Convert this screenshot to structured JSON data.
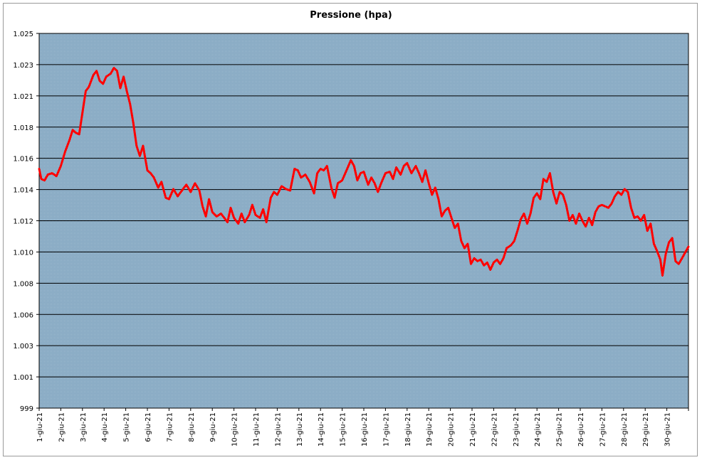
{
  "chart_data": {
    "type": "line",
    "title": "Pressione (hpa)",
    "xlabel": "",
    "ylabel": "",
    "y_tick_labels": [
      "999",
      "1.001",
      "1.003",
      "1.006",
      "1.008",
      "1.010",
      "1.012",
      "1.014",
      "1.016",
      "1.018",
      "1.021",
      "1.023",
      "1.025"
    ],
    "ylim": [
      999,
      1025
    ],
    "x_tick_labels": [
      "1-giu-21",
      "2-giu-21",
      "3-giu-21",
      "4-giu-21",
      "5-giu-21",
      "6-giu-21",
      "7-giu-21",
      "8-giu-21",
      "9-giu-21",
      "10-giu-21",
      "11-giu-21",
      "12-giu-21",
      "13-giu-21",
      "14-giu-21",
      "15-giu-21",
      "16-giu-21",
      "17-giu-21",
      "18-giu-21",
      "19-giu-21",
      "20-giu-21",
      "21-giu-21",
      "22-giu-21",
      "23-giu-21",
      "24-giu-21",
      "25-giu-21",
      "26-giu-21",
      "27-giu-21",
      "28-giu-21",
      "29-giu-21",
      "30-giu-21"
    ],
    "xlim": [
      1,
      31
    ],
    "grid": true,
    "plot_background": "#7fa6bf",
    "series": [
      {
        "color": "#ff0000",
        "points": [
          [
            1.0,
            1015.6
          ],
          [
            1.1,
            1014.9
          ],
          [
            1.25,
            1014.8
          ],
          [
            1.4,
            1015.2
          ],
          [
            1.6,
            1015.3
          ],
          [
            1.8,
            1015.1
          ],
          [
            2.0,
            1015.8
          ],
          [
            2.2,
            1016.8
          ],
          [
            2.4,
            1017.6
          ],
          [
            2.55,
            1018.3
          ],
          [
            2.7,
            1018.1
          ],
          [
            2.85,
            1018.0
          ],
          [
            3.0,
            1019.5
          ],
          [
            3.15,
            1021.0
          ],
          [
            3.3,
            1021.3
          ],
          [
            3.5,
            1022.1
          ],
          [
            3.65,
            1022.4
          ],
          [
            3.8,
            1021.7
          ],
          [
            3.95,
            1021.5
          ],
          [
            4.1,
            1022.0
          ],
          [
            4.3,
            1022.2
          ],
          [
            4.45,
            1022.6
          ],
          [
            4.6,
            1022.4
          ],
          [
            4.75,
            1021.2
          ],
          [
            4.9,
            1022.0
          ],
          [
            5.05,
            1021.0
          ],
          [
            5.2,
            1020.1
          ],
          [
            5.35,
            1018.8
          ],
          [
            5.5,
            1017.2
          ],
          [
            5.65,
            1016.5
          ],
          [
            5.8,
            1017.2
          ],
          [
            6.0,
            1015.5
          ],
          [
            6.15,
            1015.3
          ],
          [
            6.3,
            1015.0
          ],
          [
            6.5,
            1014.3
          ],
          [
            6.65,
            1014.7
          ],
          [
            6.85,
            1013.6
          ],
          [
            7.0,
            1013.5
          ],
          [
            7.2,
            1014.2
          ],
          [
            7.4,
            1013.7
          ],
          [
            7.6,
            1014.1
          ],
          [
            7.8,
            1014.5
          ],
          [
            8.0,
            1014.0
          ],
          [
            8.2,
            1014.6
          ],
          [
            8.4,
            1014.1
          ],
          [
            8.55,
            1013.0
          ],
          [
            8.7,
            1012.3
          ],
          [
            8.85,
            1013.5
          ],
          [
            9.0,
            1012.6
          ],
          [
            9.2,
            1012.3
          ],
          [
            9.4,
            1012.5
          ],
          [
            9.55,
            1012.2
          ],
          [
            9.7,
            1011.9
          ],
          [
            9.85,
            1012.9
          ],
          [
            10.0,
            1012.2
          ],
          [
            10.2,
            1011.8
          ],
          [
            10.35,
            1012.5
          ],
          [
            10.5,
            1011.9
          ],
          [
            10.7,
            1012.4
          ],
          [
            10.85,
            1013.1
          ],
          [
            11.0,
            1012.4
          ],
          [
            11.2,
            1012.2
          ],
          [
            11.35,
            1012.8
          ],
          [
            11.5,
            1011.9
          ],
          [
            11.7,
            1013.6
          ],
          [
            11.85,
            1014.0
          ],
          [
            12.0,
            1013.8
          ],
          [
            12.2,
            1014.4
          ],
          [
            12.4,
            1014.2
          ],
          [
            12.6,
            1014.1
          ],
          [
            12.8,
            1015.6
          ],
          [
            12.95,
            1015.5
          ],
          [
            13.1,
            1015.0
          ],
          [
            13.3,
            1015.2
          ],
          [
            13.5,
            1014.7
          ],
          [
            13.7,
            1013.9
          ],
          [
            13.85,
            1015.3
          ],
          [
            14.0,
            1015.6
          ],
          [
            14.15,
            1015.5
          ],
          [
            14.3,
            1015.8
          ],
          [
            14.5,
            1014.3
          ],
          [
            14.65,
            1013.6
          ],
          [
            14.8,
            1014.6
          ],
          [
            15.0,
            1014.8
          ],
          [
            15.2,
            1015.5
          ],
          [
            15.4,
            1016.2
          ],
          [
            15.55,
            1015.8
          ],
          [
            15.7,
            1014.8
          ],
          [
            15.85,
            1015.3
          ],
          [
            16.0,
            1015.4
          ],
          [
            16.2,
            1014.5
          ],
          [
            16.35,
            1015.0
          ],
          [
            16.5,
            1014.6
          ],
          [
            16.65,
            1014.0
          ],
          [
            16.8,
            1014.6
          ],
          [
            17.0,
            1015.3
          ],
          [
            17.2,
            1015.4
          ],
          [
            17.35,
            1014.9
          ],
          [
            17.5,
            1015.7
          ],
          [
            17.7,
            1015.2
          ],
          [
            17.85,
            1015.8
          ],
          [
            18.0,
            1016.0
          ],
          [
            18.2,
            1015.3
          ],
          [
            18.4,
            1015.8
          ],
          [
            18.55,
            1015.3
          ],
          [
            18.7,
            1014.7
          ],
          [
            18.85,
            1015.5
          ],
          [
            19.0,
            1014.6
          ],
          [
            19.15,
            1013.8
          ],
          [
            19.3,
            1014.3
          ],
          [
            19.45,
            1013.5
          ],
          [
            19.6,
            1012.3
          ],
          [
            19.75,
            1012.7
          ],
          [
            19.9,
            1012.9
          ],
          [
            20.05,
            1012.2
          ],
          [
            20.2,
            1011.5
          ],
          [
            20.35,
            1011.8
          ],
          [
            20.5,
            1010.6
          ],
          [
            20.65,
            1010.1
          ],
          [
            20.8,
            1010.4
          ],
          [
            20.95,
            1009.0
          ],
          [
            21.1,
            1009.4
          ],
          [
            21.25,
            1009.2
          ],
          [
            21.4,
            1009.3
          ],
          [
            21.55,
            1008.9
          ],
          [
            21.7,
            1009.1
          ],
          [
            21.85,
            1008.6
          ],
          [
            22.0,
            1009.1
          ],
          [
            22.15,
            1009.3
          ],
          [
            22.3,
            1009.0
          ],
          [
            22.45,
            1009.4
          ],
          [
            22.6,
            1010.1
          ],
          [
            22.8,
            1010.3
          ],
          [
            22.95,
            1010.6
          ],
          [
            23.1,
            1011.3
          ],
          [
            23.25,
            1012.1
          ],
          [
            23.4,
            1012.5
          ],
          [
            23.55,
            1011.8
          ],
          [
            23.7,
            1012.5
          ],
          [
            23.85,
            1013.6
          ],
          [
            24.0,
            1013.9
          ],
          [
            24.15,
            1013.5
          ],
          [
            24.3,
            1014.9
          ],
          [
            24.45,
            1014.7
          ],
          [
            24.6,
            1015.3
          ],
          [
            24.75,
            1014.0
          ],
          [
            24.9,
            1013.2
          ],
          [
            25.05,
            1014.0
          ],
          [
            25.2,
            1013.8
          ],
          [
            25.35,
            1013.1
          ],
          [
            25.5,
            1012.0
          ],
          [
            25.65,
            1012.4
          ],
          [
            25.8,
            1011.8
          ],
          [
            25.95,
            1012.5
          ],
          [
            26.1,
            1012.0
          ],
          [
            26.25,
            1011.6
          ],
          [
            26.4,
            1012.2
          ],
          [
            26.55,
            1011.7
          ],
          [
            26.7,
            1012.6
          ],
          [
            26.85,
            1013.0
          ],
          [
            27.0,
            1013.1
          ],
          [
            27.15,
            1013.0
          ],
          [
            27.3,
            1012.9
          ],
          [
            27.45,
            1013.2
          ],
          [
            27.6,
            1013.7
          ],
          [
            27.75,
            1014.0
          ],
          [
            27.9,
            1013.8
          ],
          [
            28.05,
            1014.2
          ],
          [
            28.2,
            1014.0
          ],
          [
            28.35,
            1012.9
          ],
          [
            28.5,
            1012.2
          ],
          [
            28.65,
            1012.3
          ],
          [
            28.8,
            1012.0
          ],
          [
            28.95,
            1012.4
          ],
          [
            29.1,
            1011.3
          ],
          [
            29.25,
            1011.8
          ],
          [
            29.4,
            1010.4
          ],
          [
            29.55,
            1009.9
          ],
          [
            29.7,
            1009.3
          ],
          [
            29.8,
            1008.2
          ],
          [
            29.95,
            1009.7
          ],
          [
            30.1,
            1010.5
          ],
          [
            30.25,
            1010.8
          ],
          [
            30.4,
            1009.2
          ],
          [
            30.55,
            1009.0
          ],
          [
            30.7,
            1009.4
          ],
          [
            30.85,
            1009.8
          ],
          [
            31.0,
            1010.2
          ]
        ]
      }
    ]
  }
}
